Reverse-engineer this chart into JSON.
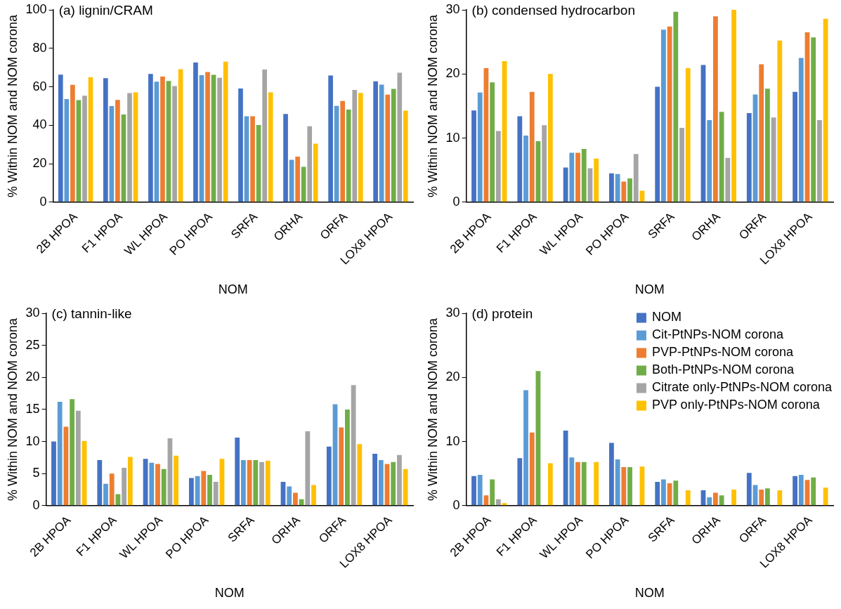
{
  "chart_data": [
    {
      "type": "bar",
      "title": "(a) lignin/CRAM",
      "xlabel": "NOM",
      "ylabel": "% Within NOM and NOM corona",
      "categories": [
        "2B HPOA",
        "F1 HPOA",
        "WL HPOA",
        "PO HPOA",
        "SRFA",
        "ORHA",
        "ORFA",
        "LOX8 HPOA"
      ],
      "ylim": [
        0,
        100
      ],
      "yticks": [
        0,
        20,
        40,
        60,
        80,
        100
      ],
      "grid": false,
      "legend": false,
      "series": [
        {
          "color": "#4472c4",
          "values": [
            66.3,
            64.5,
            66.7,
            72.6,
            59.1,
            45.9,
            65.9,
            62.8
          ]
        },
        {
          "color": "#5b9bd5",
          "values": [
            53.6,
            50,
            62.7,
            66,
            44.7,
            22,
            50.1,
            61.1
          ]
        },
        {
          "color": "#ed7d31",
          "values": [
            61,
            53.2,
            65.3,
            67.7,
            44.7,
            23.7,
            52.6,
            55.9
          ]
        },
        {
          "color": "#70ad47",
          "values": [
            53.1,
            45.6,
            63,
            66.2,
            40.1,
            18.4,
            48.1,
            58.9
          ]
        },
        {
          "color": "#a5a5a5",
          "values": [
            55.4,
            56.7,
            60.4,
            64.7,
            69,
            39.5,
            58.4,
            67.3
          ]
        },
        {
          "color": "#ffc000",
          "values": [
            64.9,
            57.1,
            69.1,
            73.1,
            57.1,
            30.4,
            56.8,
            47.6
          ]
        }
      ]
    },
    {
      "type": "bar",
      "title": "(b) condensed hydrocarbon",
      "xlabel": "NOM",
      "ylabel": "% Within NOM and NOM corona",
      "categories": [
        "2B HPOA",
        "F1 HPOA",
        "WL HPOA",
        "PO HPOA",
        "SRFA",
        "ORHA",
        "ORFA",
        "LOX8 HPOA"
      ],
      "ylim": [
        0,
        30
      ],
      "yticks": [
        0,
        10,
        20,
        30
      ],
      "grid": false,
      "legend": false,
      "series": [
        {
          "color": "#4472c4",
          "values": [
            14.3,
            13.4,
            5.4,
            4.5,
            18,
            21.4,
            13.9,
            17.2
          ]
        },
        {
          "color": "#5b9bd5",
          "values": [
            17.1,
            10.4,
            7.7,
            4.4,
            26.9,
            12.8,
            16.8,
            22.5
          ]
        },
        {
          "color": "#ed7d31",
          "values": [
            20.9,
            17.2,
            7.7,
            3.2,
            27.4,
            29,
            21.5,
            26.5
          ]
        },
        {
          "color": "#70ad47",
          "values": [
            18.7,
            9.5,
            8.3,
            3.7,
            29.7,
            14.1,
            17.7,
            25.7
          ]
        },
        {
          "color": "#a5a5a5",
          "values": [
            11.1,
            12,
            5.3,
            7.5,
            11.6,
            6.9,
            13.2,
            12.8
          ]
        },
        {
          "color": "#ffc000",
          "values": [
            22,
            20,
            6.8,
            1.8,
            20.9,
            30,
            25.2,
            28.6
          ]
        }
      ]
    },
    {
      "type": "bar",
      "title": "(c) tannin-like",
      "xlabel": "NOM",
      "ylabel": "% Within NOM and NOM corona",
      "categories": [
        "2B HPOA",
        "F1 HPOA",
        "WL HPOA",
        "PO HPOA",
        "SRFA",
        "ORHA",
        "ORFA",
        "LOX8 HPOA"
      ],
      "ylim": [
        0,
        30
      ],
      "yticks": [
        0,
        5,
        10,
        15,
        20,
        25,
        30
      ],
      "grid": false,
      "legend": false,
      "series": [
        {
          "color": "#4472c4",
          "values": [
            10,
            7.1,
            7.3,
            4.3,
            10.6,
            3.7,
            9.2,
            8.1
          ]
        },
        {
          "color": "#5b9bd5",
          "values": [
            16.2,
            3.4,
            6.7,
            4.6,
            7.1,
            3,
            15.8,
            7.1
          ]
        },
        {
          "color": "#ed7d31",
          "values": [
            12.3,
            5,
            6.5,
            5.4,
            7.1,
            2,
            12.2,
            6.5
          ]
        },
        {
          "color": "#70ad47",
          "values": [
            16.6,
            1.8,
            5.7,
            4.8,
            7.1,
            1,
            15,
            6.8
          ]
        },
        {
          "color": "#a5a5a5",
          "values": [
            14.8,
            5.9,
            10.5,
            3.7,
            6.8,
            11.6,
            18.8,
            7.9
          ]
        },
        {
          "color": "#ffc000",
          "values": [
            10.1,
            7.6,
            7.8,
            7.3,
            7,
            3.2,
            9.6,
            5.7
          ]
        }
      ]
    },
    {
      "type": "bar",
      "title": "(d) protein",
      "xlabel": "NOM",
      "ylabel": "% Within NOM and NOM corona",
      "categories": [
        "2B HPOA",
        "F1 HPOA",
        "WL HPOA",
        "PO HPOA",
        "SRFA",
        "ORHA",
        "ORFA",
        "LOX8 HPOA"
      ],
      "ylim": [
        0,
        30
      ],
      "yticks": [
        0,
        10,
        20,
        30
      ],
      "grid": false,
      "legend": "top right",
      "series": [
        {
          "name": "NOM",
          "color": "#4472c4",
          "values": [
            4.6,
            7.4,
            11.7,
            9.8,
            3.7,
            2.4,
            5.1,
            4.6
          ]
        },
        {
          "name": "Cit-PtNPs-NOM corona",
          "color": "#5b9bd5",
          "values": [
            4.8,
            18,
            7.5,
            7.2,
            4.1,
            1.3,
            3.2,
            4.8
          ]
        },
        {
          "name": "PVP-PtNPs-NOM corona",
          "color": "#ed7d31",
          "values": [
            1.6,
            11.4,
            6.8,
            6,
            3.5,
            2,
            2.5,
            4
          ]
        },
        {
          "name": "Both-PtNPs-NOM corona",
          "color": "#70ad47",
          "values": [
            4.1,
            21,
            6.8,
            6,
            3.9,
            1.6,
            2.7,
            4.4
          ]
        },
        {
          "name": "Citrate only-PtNPs-NOM corona",
          "color": "#a5a5a5",
          "values": [
            1,
            0,
            0,
            0,
            0,
            0,
            0,
            0
          ]
        },
        {
          "name": "PVP only-PtNPs-NOM corona",
          "color": "#ffc000",
          "values": [
            0.4,
            6.6,
            6.8,
            6.1,
            2.4,
            2.5,
            2.4,
            2.8
          ]
        }
      ]
    }
  ]
}
